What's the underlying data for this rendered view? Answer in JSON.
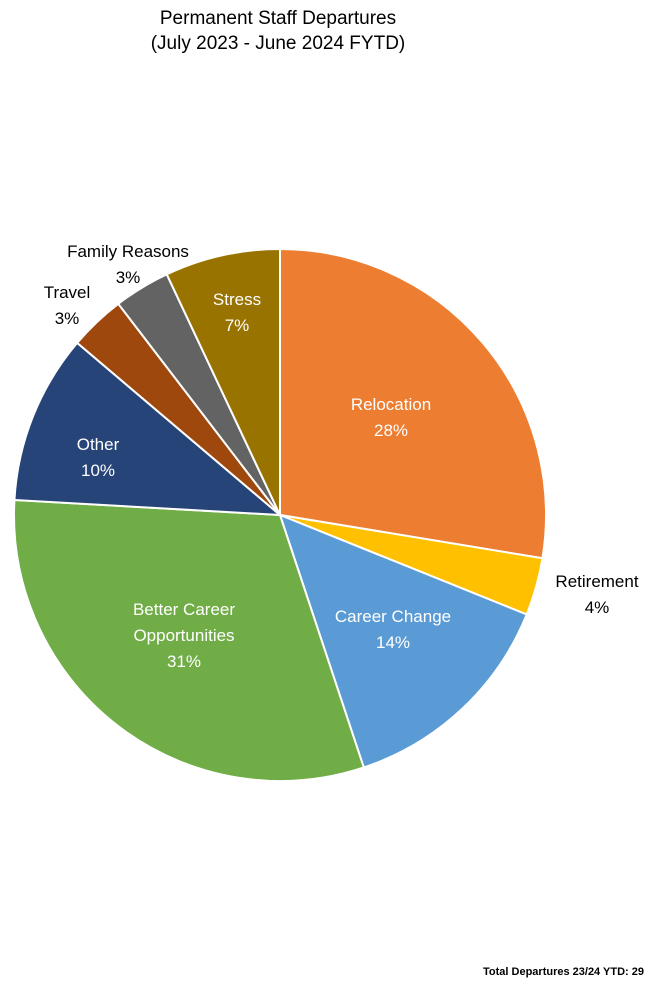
{
  "chart_data": {
    "type": "pie",
    "title_line1": "Permanent Staff Departures",
    "title_line2": "(July 2023 - June 2024 FYTD)",
    "start": "top",
    "direction": "clockwise",
    "slices": [
      {
        "name": "Relocation",
        "label_lines": [
          "Relocation"
        ],
        "pct_label": "28%",
        "value": 27.6,
        "color": "#ED7D31",
        "label_inside": true
      },
      {
        "name": "Retirement",
        "label_lines": [
          "Retirement"
        ],
        "pct_label": "4%",
        "value": 3.5,
        "color": "#FFC000",
        "label_inside": false
      },
      {
        "name": "Career Change",
        "label_lines": [
          "Career Change"
        ],
        "pct_label": "14%",
        "value": 13.8,
        "color": "#5B9BD5",
        "label_inside": true
      },
      {
        "name": "Better Career Opportunities",
        "label_lines": [
          "Better Career",
          "Opportunities"
        ],
        "pct_label": "31%",
        "value": 31.0,
        "color": "#70AD47",
        "label_inside": true
      },
      {
        "name": "Other",
        "label_lines": [
          "Other"
        ],
        "pct_label": "10%",
        "value": 10.3,
        "color": "#264478",
        "label_inside": true
      },
      {
        "name": "Travel",
        "label_lines": [
          "Travel"
        ],
        "pct_label": "3%",
        "value": 3.4,
        "color": "#9E480E",
        "label_inside": false
      },
      {
        "name": "Family Reasons",
        "label_lines": [
          "Family Reasons"
        ],
        "pct_label": "3%",
        "value": 3.4,
        "color": "#636363",
        "label_inside": false
      },
      {
        "name": "Stress",
        "label_lines": [
          "Stress"
        ],
        "pct_label": "7%",
        "value": 7.0,
        "color": "#997300",
        "label_inside": true
      }
    ],
    "footer": "Total Departures 23/24 YTD: 29"
  }
}
